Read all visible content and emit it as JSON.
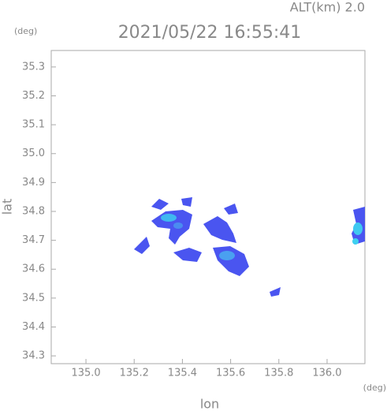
{
  "chart_data": {
    "type": "map",
    "title": "2021/05/22 16:55:41",
    "subtitle": "ALT(km) 2.0",
    "x_label": "lon",
    "y_label": "lat",
    "x_unit": "(deg)",
    "y_unit": "(deg)",
    "xlim": [
      134.856,
      136.157
    ],
    "ylim": [
      34.273,
      35.357
    ],
    "xticks": [
      {
        "value": 135.0,
        "label": "135.0"
      },
      135.2,
      135.4,
      135.6,
      135.8,
      {
        "value": 136.0,
        "label": "136.0"
      }
    ],
    "yticks": [
      34.3,
      34.4,
      34.5,
      34.6,
      34.7,
      34.8,
      34.9,
      {
        "value": 35.0,
        "label": "35.0"
      },
      35.1,
      35.2,
      35.3
    ]
  }
}
